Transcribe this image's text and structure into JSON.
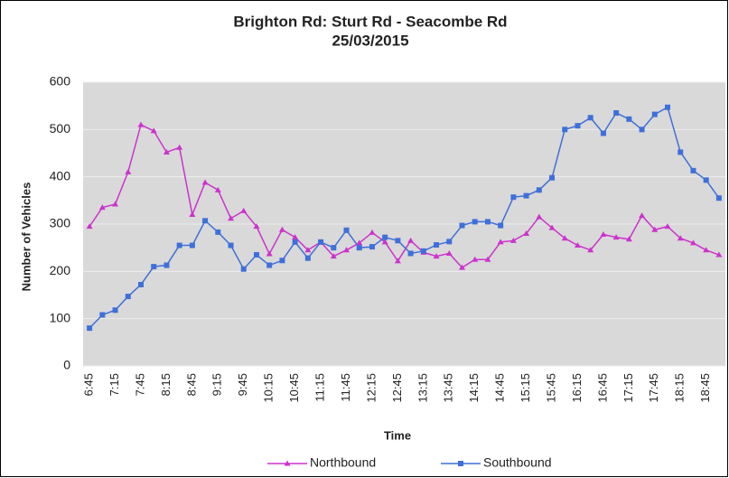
{
  "chart_data": {
    "type": "line",
    "title": "Brighton Rd: Sturt Rd - Seacombe Rd",
    "subtitle": "25/03/2015",
    "x_label": "Time",
    "y_label": "Number of Vehicles",
    "categories": [
      "6:45",
      null,
      "7:15",
      null,
      "7:45",
      null,
      "8:15",
      null,
      "8:45",
      null,
      "9:15",
      null,
      "9:45",
      null,
      "10:15",
      null,
      "10:45",
      null,
      "11:15",
      null,
      "11:45",
      null,
      "12:15",
      null,
      "12:45",
      null,
      "13:15",
      null,
      "13:45",
      null,
      "14:15",
      null,
      "14:45",
      null,
      "15:15",
      null,
      "15:45",
      null,
      "16:15",
      null,
      "16:45",
      null,
      "17:15",
      null,
      "17:45",
      null,
      "18:15",
      null,
      "18:45",
      null
    ],
    "series": [
      {
        "name": "Northbound",
        "color": "#cc33cc",
        "marker": "triangle",
        "values": [
          295,
          335,
          342,
          410,
          510,
          497,
          452,
          462,
          320,
          388,
          372,
          312,
          328,
          295,
          237,
          288,
          272,
          245,
          262,
          232,
          245,
          260,
          282,
          262,
          222,
          265,
          240,
          232,
          238,
          208,
          225,
          225,
          262,
          265,
          280,
          315,
          292,
          270,
          255,
          245,
          278,
          272,
          268,
          318,
          288,
          295,
          270,
          260,
          245,
          235
        ]
      },
      {
        "name": "Southbound",
        "color": "#3f6fd9",
        "marker": "square",
        "values": [
          80,
          108,
          118,
          147,
          172,
          210,
          213,
          255,
          255,
          307,
          283,
          255,
          205,
          235,
          213,
          223,
          262,
          228,
          262,
          250,
          287,
          250,
          252,
          272,
          265,
          238,
          243,
          256,
          263,
          297,
          305,
          305,
          297,
          357,
          360,
          372,
          398,
          500,
          508,
          525,
          492,
          535,
          522,
          500,
          532,
          547,
          452,
          413,
          393,
          355
        ]
      }
    ],
    "ylim": [
      0,
      600
    ],
    "yticks": [
      0,
      100,
      200,
      300,
      400,
      500,
      600
    ],
    "grid": true
  }
}
